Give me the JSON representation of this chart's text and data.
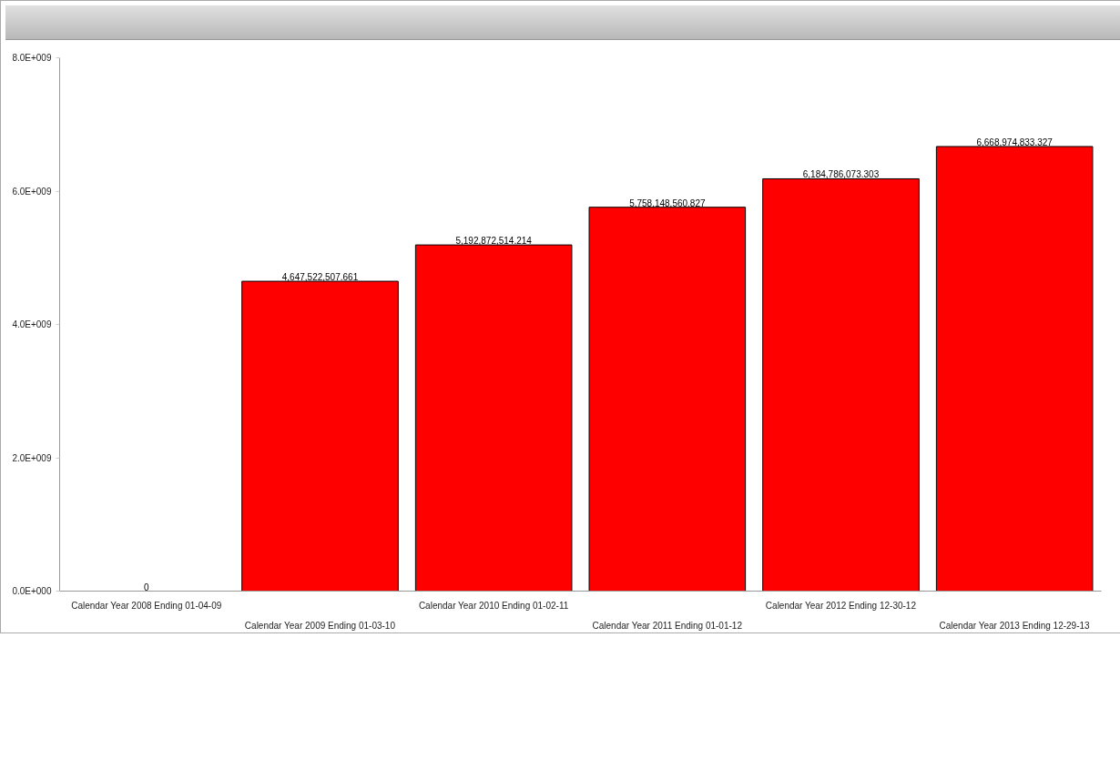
{
  "chart_data": {
    "type": "bar",
    "categories": [
      "Calendar Year 2008 Ending 01-04-09",
      "Calendar Year 2009 Ending 01-03-10",
      "Calendar Year 2010 Ending 01-02-11",
      "Calendar Year 2011 Ending 01-01-12",
      "Calendar Year 2012 Ending 12-30-12",
      "Calendar Year 2013 Ending 12-29-13"
    ],
    "values": [
      0,
      4647522507.661,
      5192872514.214,
      5758148560.827,
      6184786073.303,
      6668974833.327
    ],
    "value_labels": [
      "0",
      "4,647,522,507.661",
      "5,192,872,514.214",
      "5,758,148,560.827",
      "6,184,786,073.303",
      "6,668,974,833.327"
    ],
    "color": "#ff0000",
    "ylim": [
      0,
      8000000000
    ],
    "yticks": [
      {
        "value": 0,
        "label": "0.0E+000"
      },
      {
        "value": 2000000000,
        "label": "2.0E+009"
      },
      {
        "value": 4000000000,
        "label": "4.0E+009"
      },
      {
        "value": 6000000000,
        "label": "6.0E+009"
      },
      {
        "value": 8000000000,
        "label": "8.0E+009"
      }
    ]
  }
}
